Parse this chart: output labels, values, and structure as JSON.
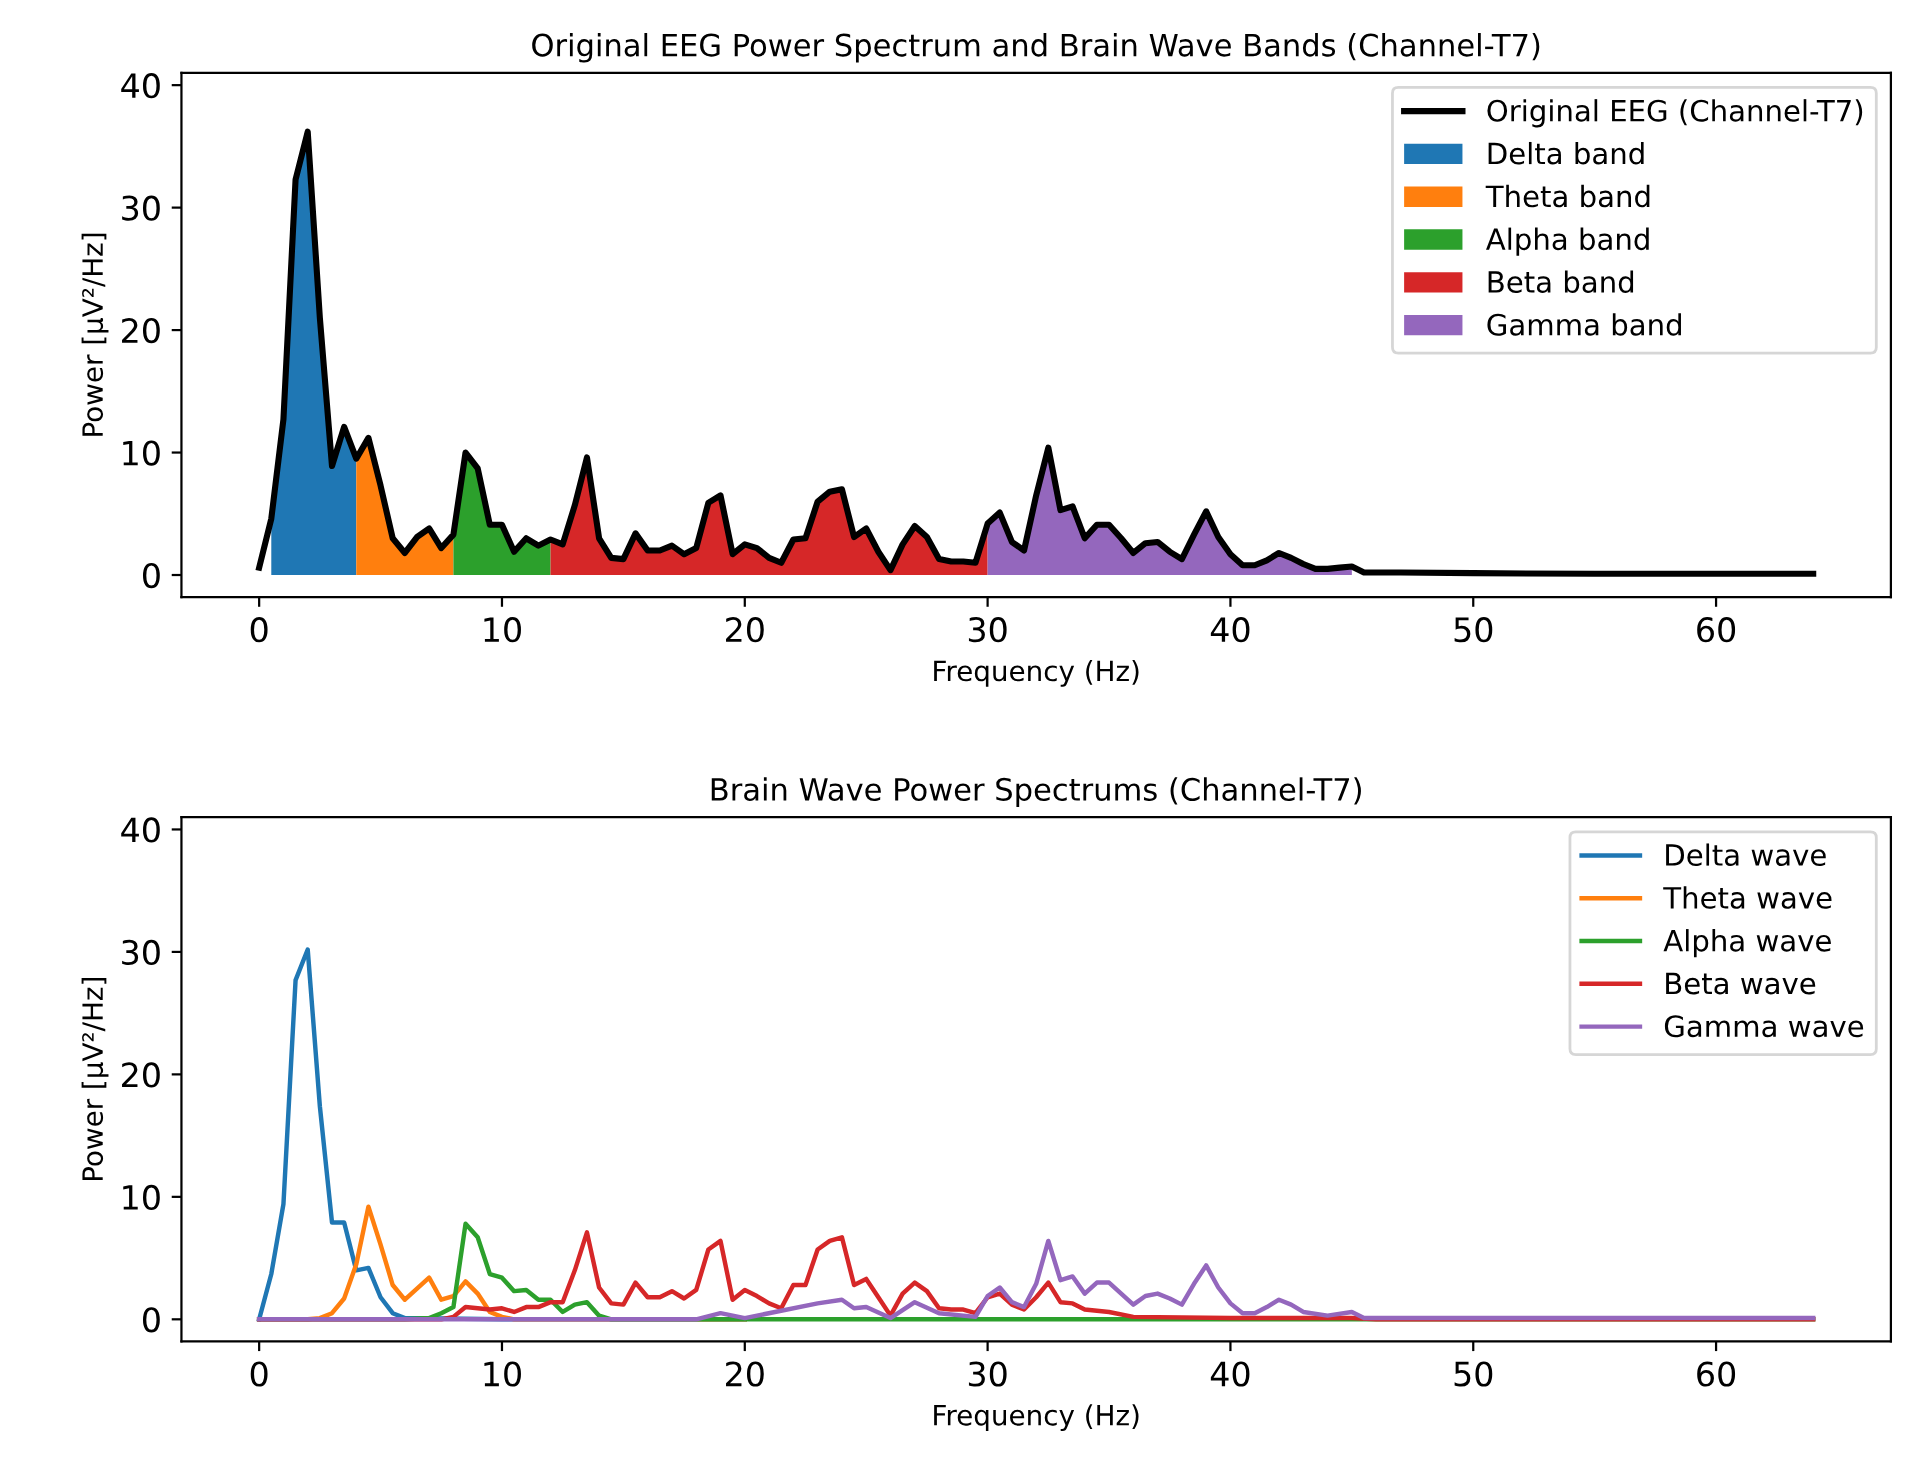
{
  "chart_data": [
    {
      "type": "line",
      "title": "Original EEG Power Spectrum and Brain Wave Bands (Channel-T7)",
      "xlabel": "Frequency (Hz)",
      "ylabel": "Power [μV²/Hz]",
      "xlim": [
        -3.2,
        67.2
      ],
      "ylim": [
        -1.8,
        41
      ],
      "xticks": [
        0,
        10,
        20,
        30,
        40,
        50,
        60
      ],
      "yticks": [
        0,
        10,
        20,
        30,
        40
      ],
      "grid": false,
      "legend": "top right",
      "marker": "none",
      "line_style": "solid",
      "series": [
        {
          "name": "Original EEG (Channel-T7)",
          "type": "line",
          "color": "#000000",
          "x": [
            0,
            0.5,
            1,
            1.5,
            2,
            2.5,
            3,
            3.5,
            4,
            4.5,
            5,
            5.5,
            6,
            6.5,
            7,
            7.5,
            8,
            8.5,
            9,
            9.5,
            10,
            10.5,
            11,
            11.5,
            12,
            12.5,
            13,
            13.5,
            14,
            14.5,
            15,
            15.5,
            16,
            16.5,
            17,
            17.5,
            18,
            18.5,
            19,
            19.5,
            20,
            20.5,
            21,
            21.5,
            22,
            22.5,
            23,
            23.5,
            24,
            24.5,
            25,
            25.5,
            26,
            26.5,
            27,
            27.5,
            28,
            28.5,
            29,
            29.5,
            30,
            30.5,
            31,
            31.5,
            32,
            32.5,
            33,
            33.5,
            34,
            34.5,
            35,
            35.5,
            36,
            36.5,
            37,
            37.5,
            38,
            38.5,
            39,
            39.5,
            40,
            40.5,
            41,
            41.5,
            42,
            42.5,
            43,
            43.5,
            44,
            44.5,
            45,
            45.5,
            47,
            50,
            55,
            60,
            64
          ],
          "values": [
            0.6,
            4.6,
            12.7,
            32.3,
            36.2,
            21,
            8.9,
            12.1,
            9.5,
            11.2,
            7.3,
            3.0,
            1.8,
            3.1,
            3.8,
            2.2,
            3.3,
            10.0,
            8.7,
            4.1,
            4.1,
            1.9,
            3.0,
            2.4,
            2.9,
            2.5,
            5.7,
            9.6,
            3.0,
            1.4,
            1.3,
            3.4,
            2.0,
            2.0,
            2.4,
            1.7,
            2.2,
            5.9,
            6.5,
            1.7,
            2.5,
            2.2,
            1.4,
            1.0,
            2.9,
            3.0,
            6.0,
            6.8,
            7.0,
            3.1,
            3.8,
            1.9,
            0.4,
            2.5,
            4.0,
            3.1,
            1.3,
            1.1,
            1.1,
            1.0,
            4.2,
            5.1,
            2.7,
            2.0,
            6.5,
            10.4,
            5.3,
            5.6,
            3.0,
            4.1,
            4.1,
            3.0,
            1.8,
            2.6,
            2.7,
            1.9,
            1.3,
            3.3,
            5.2,
            3.1,
            1.7,
            0.8,
            0.8,
            1.2,
            1.8,
            1.4,
            0.9,
            0.5,
            0.5,
            0.6,
            0.7,
            0.2,
            0.2,
            0.15,
            0.1,
            0.1,
            0.1
          ]
        },
        {
          "name": "Delta band",
          "type": "area",
          "color": "#1f77b4",
          "x": [
            0.5,
            1,
            1.5,
            2,
            2.5,
            3,
            3.5,
            4
          ],
          "values": [
            4.6,
            12.7,
            32.3,
            36.2,
            21,
            8.9,
            12.1,
            9.5
          ]
        },
        {
          "name": "Theta band",
          "type": "area",
          "color": "#ff7f0e",
          "x": [
            4,
            4.5,
            5,
            5.5,
            6,
            6.5,
            7,
            7.5,
            8
          ],
          "values": [
            9.5,
            11.2,
            7.3,
            3.0,
            1.8,
            3.1,
            3.8,
            2.2,
            3.3
          ]
        },
        {
          "name": "Alpha band",
          "type": "area",
          "color": "#2ca02c",
          "x": [
            8,
            8.5,
            9,
            9.5,
            10,
            10.5,
            11,
            11.5,
            12
          ],
          "values": [
            3.3,
            10.0,
            8.7,
            4.1,
            4.1,
            1.9,
            3.0,
            2.4,
            2.9
          ]
        },
        {
          "name": "Beta band",
          "type": "area",
          "color": "#d62728",
          "x": [
            12,
            12.5,
            13,
            13.5,
            14,
            14.5,
            15,
            15.5,
            16,
            16.5,
            17,
            17.5,
            18,
            18.5,
            19,
            19.5,
            20,
            20.5,
            21,
            21.5,
            22,
            22.5,
            23,
            23.5,
            24,
            24.5,
            25,
            25.5,
            26,
            26.5,
            27,
            27.5,
            28,
            28.5,
            29,
            29.5,
            30
          ],
          "values": [
            2.9,
            2.5,
            5.7,
            9.6,
            3.0,
            1.4,
            1.3,
            3.4,
            2.0,
            2.0,
            2.4,
            1.7,
            2.2,
            5.9,
            6.5,
            1.7,
            2.5,
            2.2,
            1.4,
            1.0,
            2.9,
            3.0,
            6.0,
            6.8,
            7.0,
            3.1,
            3.8,
            1.9,
            0.4,
            2.5,
            4.0,
            3.1,
            1.3,
            1.1,
            1.1,
            1.0,
            4.2
          ]
        },
        {
          "name": "Gamma band",
          "type": "area",
          "color": "#9467bd",
          "x": [
            30,
            30.5,
            31,
            31.5,
            32,
            32.5,
            33,
            33.5,
            34,
            34.5,
            35,
            35.5,
            36,
            36.5,
            37,
            37.5,
            38,
            38.5,
            39,
            39.5,
            40,
            40.5,
            41,
            41.5,
            42,
            42.5,
            43,
            43.5,
            44,
            44.5,
            45
          ],
          "values": [
            4.2,
            5.1,
            2.7,
            2.0,
            6.5,
            10.4,
            5.3,
            5.6,
            3.0,
            4.1,
            4.1,
            3.0,
            1.8,
            2.6,
            2.7,
            1.9,
            1.3,
            3.3,
            5.2,
            3.1,
            1.7,
            0.8,
            0.8,
            1.2,
            1.8,
            1.4,
            0.9,
            0.5,
            0.5,
            0.6,
            0.7
          ]
        }
      ]
    },
    {
      "type": "line",
      "title": "Brain Wave Power Spectrums (Channel-T7)",
      "xlabel": "Frequency (Hz)",
      "ylabel": "Power [μV²/Hz]",
      "xlim": [
        -3.2,
        67.2
      ],
      "ylim": [
        -1.8,
        41
      ],
      "xticks": [
        0,
        10,
        20,
        30,
        40,
        50,
        60
      ],
      "yticks": [
        0,
        10,
        20,
        30,
        40
      ],
      "grid": false,
      "legend": "top right",
      "marker": "none",
      "line_style": "solid",
      "series": [
        {
          "name": "Delta wave",
          "color": "#1f77b4",
          "x": [
            0,
            0.5,
            1,
            1.5,
            2,
            2.5,
            3,
            3.5,
            4,
            4.5,
            5,
            5.5,
            6,
            10,
            20
          ],
          "values": [
            0,
            3.7,
            9.4,
            27.7,
            30.2,
            17.4,
            7.9,
            7.9,
            4.0,
            4.2,
            1.8,
            0.5,
            0.1,
            0,
            0
          ]
        },
        {
          "name": "Theta wave",
          "color": "#ff7f0e",
          "x": [
            0,
            1,
            2,
            2.5,
            3,
            3.5,
            4,
            4.5,
            5,
            5.5,
            6,
            6.5,
            7,
            7.5,
            8,
            8.5,
            9,
            9.5,
            10,
            10.5,
            20
          ],
          "values": [
            0,
            0,
            0,
            0.1,
            0.5,
            1.7,
            4.5,
            9.2,
            6.1,
            2.8,
            1.6,
            2.5,
            3.4,
            1.6,
            1.9,
            3.1,
            2.1,
            0.6,
            0.2,
            0,
            0
          ]
        },
        {
          "name": "Alpha wave",
          "color": "#2ca02c",
          "x": [
            0,
            3,
            6,
            7,
            7.5,
            8,
            8.5,
            9,
            9.5,
            10,
            10.5,
            11,
            11.5,
            12,
            12.5,
            13,
            13.5,
            14,
            14.5,
            20,
            30,
            40,
            50,
            64
          ],
          "values": [
            0,
            0,
            0,
            0.1,
            0.5,
            1.0,
            7.8,
            6.7,
            3.7,
            3.4,
            2.3,
            2.4,
            1.6,
            1.6,
            0.6,
            1.2,
            1.4,
            0.3,
            0,
            0,
            0,
            0,
            0,
            0
          ]
        },
        {
          "name": "Beta wave",
          "color": "#d62728",
          "x": [
            0,
            4,
            7.5,
            8,
            8.5,
            9,
            9.5,
            10,
            10.5,
            11,
            11.5,
            12,
            12.5,
            13,
            13.5,
            14,
            14.5,
            15,
            15.5,
            16,
            16.5,
            17,
            17.5,
            18,
            18.5,
            19,
            19.5,
            20,
            20.5,
            21,
            21.5,
            22,
            22.5,
            23,
            23.5,
            24,
            24.5,
            25,
            25.5,
            26,
            26.5,
            27,
            27.5,
            28,
            28.5,
            29,
            29.5,
            30,
            30.5,
            31,
            31.5,
            32,
            32.5,
            33,
            33.5,
            34,
            35,
            36,
            40,
            45,
            46,
            50,
            64
          ],
          "values": [
            0,
            0,
            0,
            0.2,
            1.0,
            0.9,
            0.8,
            0.9,
            0.6,
            1.0,
            1.0,
            1.4,
            1.4,
            4.0,
            7.1,
            2.6,
            1.3,
            1.2,
            3.0,
            1.8,
            1.8,
            2.3,
            1.7,
            2.4,
            5.7,
            6.4,
            1.6,
            2.4,
            1.9,
            1.3,
            0.9,
            2.8,
            2.8,
            5.7,
            6.4,
            6.7,
            2.8,
            3.3,
            1.8,
            0.3,
            2.1,
            3.0,
            2.3,
            0.9,
            0.8,
            0.8,
            0.5,
            1.8,
            2.1,
            1.2,
            0.8,
            1.8,
            3.0,
            1.4,
            1.3,
            0.8,
            0.6,
            0.2,
            0.1,
            0.1,
            0,
            0,
            0
          ]
        },
        {
          "name": "Gamma wave",
          "color": "#9467bd",
          "x": [
            0,
            10,
            18,
            19,
            20,
            23,
            24,
            24.5,
            25,
            26,
            27,
            28,
            29.5,
            30,
            30.5,
            31,
            31.5,
            32,
            32.5,
            33,
            33.5,
            34,
            34.5,
            35,
            35.5,
            36,
            36.5,
            37,
            37.5,
            38,
            38.5,
            39,
            39.5,
            40,
            40.5,
            41,
            41.5,
            42,
            42.5,
            43,
            44,
            45,
            45.5,
            50,
            64
          ],
          "values": [
            0,
            0,
            0,
            0.5,
            0.1,
            1.3,
            1.6,
            0.9,
            1.0,
            0.1,
            1.4,
            0.5,
            0.2,
            1.9,
            2.6,
            1.4,
            1.0,
            2.9,
            6.4,
            3.2,
            3.5,
            2.1,
            3.0,
            3.0,
            2.1,
            1.2,
            1.9,
            2.1,
            1.7,
            1.2,
            2.9,
            4.4,
            2.6,
            1.3,
            0.5,
            0.5,
            1.0,
            1.6,
            1.2,
            0.6,
            0.3,
            0.6,
            0.1,
            0.1,
            0.1
          ]
        }
      ]
    }
  ]
}
